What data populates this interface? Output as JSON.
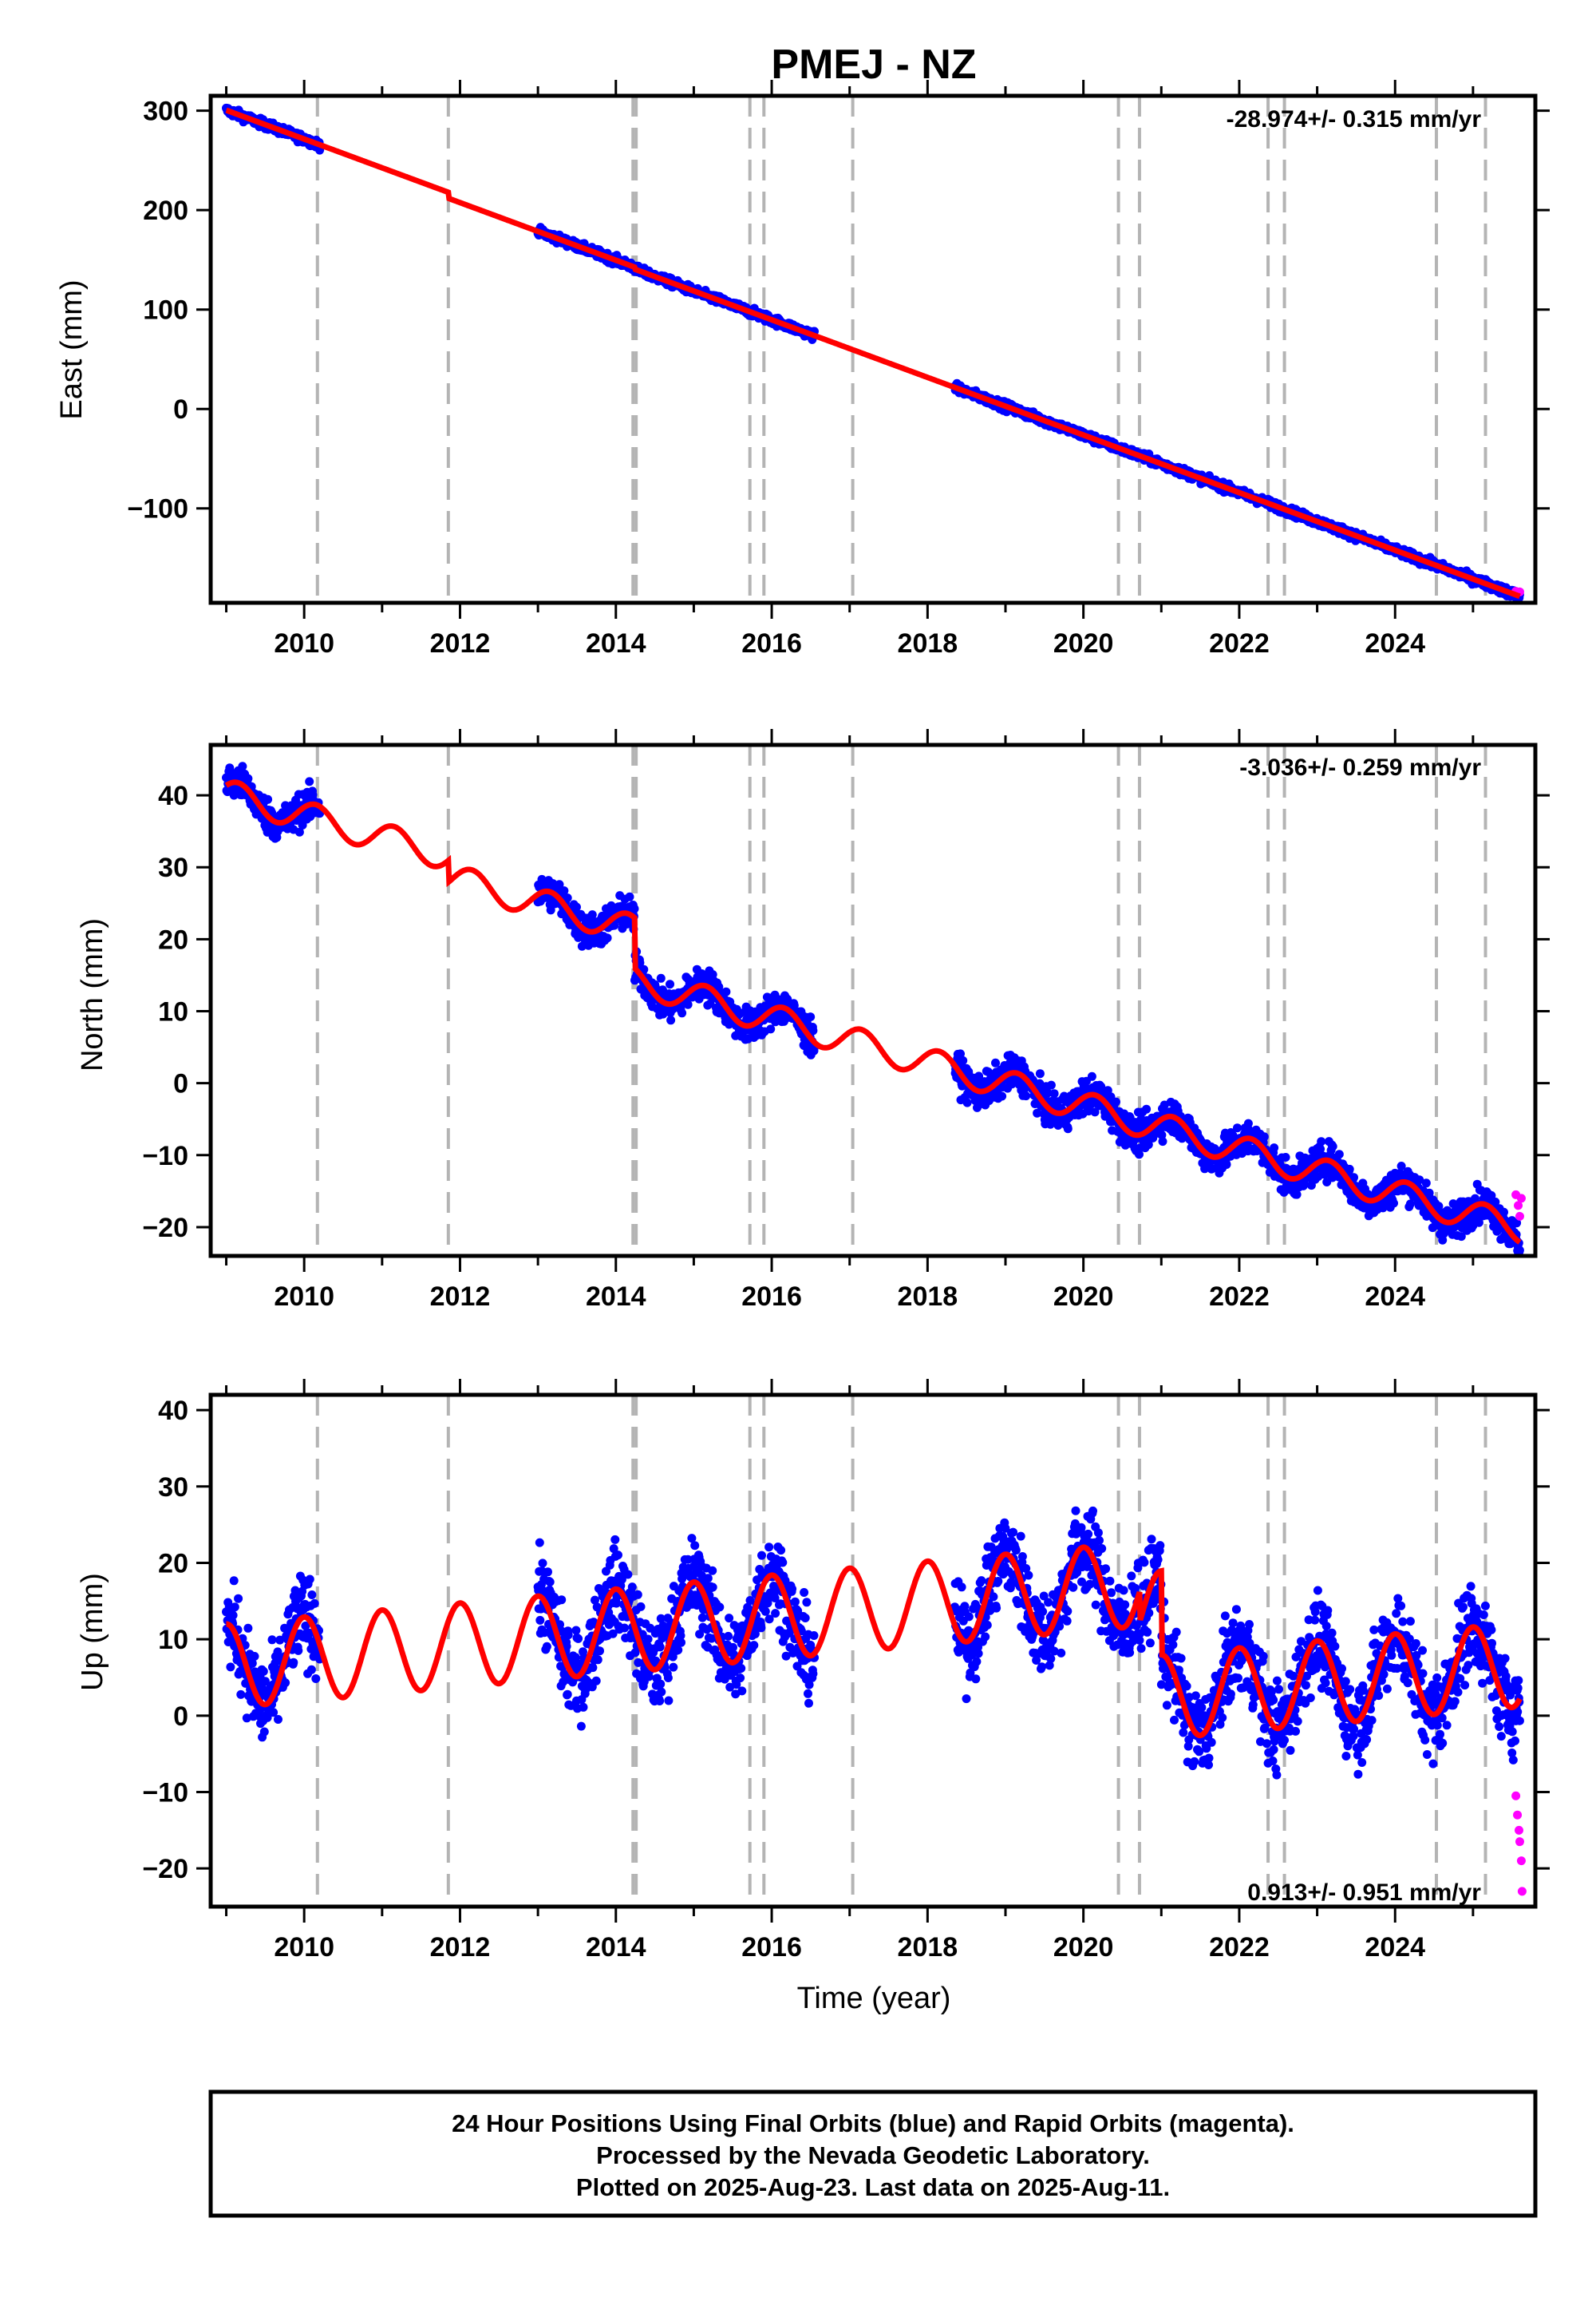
{
  "title": "PMEJ - NZ",
  "xlabel": "Time (year)",
  "footer": {
    "line1": "24 Hour Positions Using Final Orbits (blue) and Rapid Orbits (magenta).",
    "line2": "Processed by the Nevada Geodetic Laboratory.",
    "line3": "Plotted on 2025-Aug-23. Last data on 2025-Aug-11."
  },
  "colors": {
    "final_orbits": "#0000ff",
    "rapid_orbits": "#ff00ff",
    "model": "#ff0000",
    "event_lines": "#b4b4b4"
  },
  "chart_data": [
    {
      "type": "scatter",
      "component": "East",
      "ylabel": "East (mm)",
      "rate_label": "-28.974+/- 0.315 mm/yr",
      "xlim": [
        2008.8,
        2025.8
      ],
      "ylim": [
        -195,
        315
      ],
      "yticks": [
        300,
        200,
        100,
        0,
        -100
      ],
      "ytick_labels": [
        "300",
        "200",
        "100",
        "0",
        "−100"
      ],
      "xticks": [
        2010,
        2012,
        2014,
        2016,
        2018,
        2020,
        2022,
        2024
      ],
      "xtick_labels": [
        "2010",
        "2012",
        "2014",
        "2016",
        "2018",
        "2020",
        "2022",
        "2024"
      ],
      "event_lines": [
        2010.17,
        2011.85,
        2014.22,
        2014.26,
        2015.72,
        2015.9,
        2017.04,
        2020.45,
        2020.72,
        2022.37,
        2022.58,
        2024.53,
        2025.16
      ],
      "data_segments": [
        [
          2009.0,
          2010.2
        ],
        [
          2013.0,
          2016.55
        ],
        [
          2018.35,
          2025.6
        ]
      ],
      "model": {
        "t0": 2009.0,
        "y0": 300.5,
        "rate": -28.974,
        "annual_amp": 0,
        "annual_phase": 0,
        "semi_amp": 0,
        "offsets": [
          {
            "t": 2011.85,
            "dy": -6
          },
          {
            "t": 2014.24,
            "dy": -2
          }
        ],
        "noise": 3
      },
      "rapid": {
        "x": [
          2025.55,
          2025.6
        ],
        "y": [
          -183.5,
          -184
        ]
      },
      "grid": false,
      "legend": "none"
    },
    {
      "type": "scatter",
      "component": "North",
      "ylabel": "North (mm)",
      "rate_label": "-3.036+/- 0.259 mm/yr",
      "xlim": [
        2008.8,
        2025.8
      ],
      "ylim": [
        -24,
        47
      ],
      "yticks": [
        40,
        30,
        20,
        10,
        0,
        -10,
        -20
      ],
      "ytick_labels": [
        "40",
        "30",
        "20",
        "10",
        "0",
        "−10",
        "−20"
      ],
      "xticks": [
        2010,
        2012,
        2014,
        2016,
        2018,
        2020,
        2022,
        2024
      ],
      "xtick_labels": [
        "2010",
        "2012",
        "2014",
        "2016",
        "2018",
        "2020",
        "2022",
        "2024"
      ],
      "event_lines": [
        2010.17,
        2011.85,
        2014.22,
        2014.26,
        2015.72,
        2015.9,
        2017.04,
        2020.45,
        2020.72,
        2022.37,
        2022.58,
        2024.53,
        2025.16
      ],
      "data_segments": [
        [
          2009.0,
          2010.2
        ],
        [
          2013.0,
          2016.55
        ],
        [
          2018.35,
          2025.6
        ]
      ],
      "model": {
        "t0": 2009.0,
        "y0": 40.2,
        "rate": -3.036,
        "annual_amp": 2.0,
        "annual_phase": 0.15,
        "semi_amp": 0,
        "offsets": [
          {
            "t": 2011.85,
            "dy": -3
          },
          {
            "t": 2014.24,
            "dy": -7
          }
        ],
        "noise": 1.7
      },
      "rapid": {
        "x": [
          2025.55,
          2025.58,
          2025.6,
          2025.62
        ],
        "y": [
          -15.5,
          -17,
          -18.5,
          -16
        ]
      },
      "grid": false,
      "legend": "none"
    },
    {
      "type": "scatter",
      "component": "Up",
      "ylabel": "Up (mm)",
      "rate_label": "0.913+/- 0.951 mm/yr",
      "xlim": [
        2008.8,
        2025.8
      ],
      "ylim": [
        -25,
        42
      ],
      "yticks": [
        40,
        30,
        20,
        10,
        0,
        -10,
        -20
      ],
      "ytick_labels": [
        "40",
        "30",
        "20",
        "10",
        "0",
        "−10",
        "−20"
      ],
      "xticks": [
        2010,
        2012,
        2014,
        2016,
        2018,
        2020,
        2022,
        2024
      ],
      "xtick_labels": [
        "2010",
        "2012",
        "2014",
        "2016",
        "2018",
        "2020",
        "2022",
        "2024"
      ],
      "event_lines": [
        2010.17,
        2011.85,
        2014.22,
        2014.26,
        2015.72,
        2015.9,
        2017.04,
        2020.45,
        2020.72,
        2022.37,
        2022.58,
        2024.53,
        2025.16
      ],
      "data_segments": [
        [
          2009.0,
          2010.2
        ],
        [
          2013.0,
          2016.55
        ],
        [
          2018.35,
          2025.6
        ]
      ],
      "model": {
        "t0": 2009.0,
        "y0": 6.5,
        "rate": 0.913,
        "annual_amp": 5.5,
        "annual_phase": 0.0,
        "semi_amp": 0,
        "offsets": [
          {
            "t": 2020.72,
            "dy": -4
          },
          {
            "t": 2021.0,
            "dy": -11
          }
        ],
        "noise": 4.0
      },
      "rapid": {
        "x": [
          2025.55,
          2025.57,
          2025.59,
          2025.6,
          2025.62,
          2025.63
        ],
        "y": [
          -10.5,
          -13,
          -15,
          -16.5,
          -19,
          -23
        ]
      },
      "grid": false,
      "legend": "none"
    }
  ]
}
